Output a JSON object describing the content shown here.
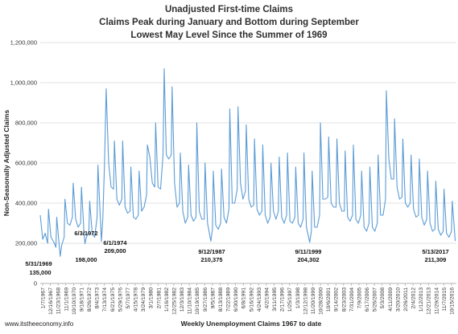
{
  "chart_data": {
    "type": "line",
    "title_lines": [
      "Unadjusted First-time Claims",
      "Claims Peak during January and Bottom during September",
      "Lowest May Level Since the Summer of 1969"
    ],
    "xlabel": "Weekly Unemployment Claims 1967 to date",
    "ylabel": "Non-Seasonally Adjusted Claims",
    "ylim": [
      0,
      1200000
    ],
    "yticks": [
      0,
      200000,
      400000,
      600000,
      800000,
      1000000,
      1200000
    ],
    "ytick_labels": [
      "0",
      "200,000",
      "400,000",
      "600,000",
      "800,000",
      "1,000,000",
      "1,200,000"
    ],
    "x_tick_labels": [
      "1/7/1967",
      "12/16/1967",
      "11/23/1968",
      "11/1/1969",
      "10/10/1970",
      "9/18/1971",
      "8/26/1972",
      "8/4/1973",
      "7/13/1974",
      "6/21/1975",
      "5/29/1976",
      "5/7/1977",
      "4/15/1978",
      "3/24/1979",
      "3/1/1980",
      "2/7/1981",
      "1/16/1982",
      "12/25/1982",
      "12/3/1983",
      "11/10/1984",
      "10/19/1985",
      "9/27/1986",
      "9/5/1987",
      "8/13/1988",
      "7/22/1989",
      "6/30/1990",
      "6/8/1991",
      "5/16/1992",
      "4/24/1993",
      "4/2/1994",
      "3/11/1995",
      "2/17/1996",
      "1/25/1997",
      "1/3/1998",
      "12/12/1998",
      "11/20/1999",
      "10/28/2000",
      "10/6/2001",
      "9/14/2002",
      "8/23/2003",
      "7/31/2004",
      "7/9/2005",
      "6/17/2006",
      "5/26/2007",
      "5/3/2008",
      "4/11/2009",
      "3/20/2010",
      "2/26/2011",
      "2/4/2012",
      "1/12/2013",
      "12/21/2013",
      "11/29/2014",
      "11/7/2015",
      "10/15/2016"
    ],
    "grid": true,
    "legend": "none",
    "line_color": "#5b9bd5",
    "series": [
      {
        "x": [
          1967.0,
          1967.3,
          1967.6,
          1967.9,
          1968.0,
          1968.3,
          1968.6,
          1968.9,
          1969.0,
          1969.3,
          1969.42,
          1969.6,
          1969.9,
          1970.0,
          1970.3,
          1970.6,
          1970.9,
          1971.0,
          1971.3,
          1971.6,
          1971.9,
          1972.0,
          1972.3,
          1972.42,
          1972.6,
          1972.9,
          1973.0,
          1973.3,
          1973.6,
          1973.9,
          1974.0,
          1974.3,
          1974.42,
          1974.6,
          1974.8,
          1975.0,
          1975.3,
          1975.6,
          1975.9,
          1976.0,
          1976.3,
          1976.6,
          1976.9,
          1977.0,
          1977.3,
          1977.6,
          1977.9,
          1978.0,
          1978.3,
          1978.6,
          1978.9,
          1979.0,
          1979.3,
          1979.6,
          1979.9,
          1980.0,
          1980.3,
          1980.6,
          1980.9,
          1981.0,
          1981.3,
          1981.6,
          1981.9,
          1982.04,
          1982.3,
          1982.6,
          1982.9,
          1983.0,
          1983.3,
          1983.6,
          1983.9,
          1984.0,
          1984.3,
          1984.6,
          1984.9,
          1985.0,
          1985.3,
          1985.6,
          1985.9,
          1986.0,
          1986.3,
          1986.6,
          1986.9,
          1987.0,
          1987.3,
          1987.7,
          1987.9,
          1988.0,
          1988.3,
          1988.6,
          1988.9,
          1989.0,
          1989.3,
          1989.6,
          1989.9,
          1990.0,
          1990.3,
          1990.6,
          1990.9,
          1991.0,
          1991.3,
          1991.6,
          1991.9,
          1992.0,
          1992.3,
          1992.6,
          1992.9,
          1993.0,
          1993.3,
          1993.6,
          1993.9,
          1994.0,
          1994.3,
          1994.6,
          1994.9,
          1995.0,
          1995.3,
          1995.6,
          1995.9,
          1996.0,
          1996.3,
          1996.6,
          1996.9,
          1997.0,
          1997.3,
          1997.6,
          1997.9,
          1998.0,
          1998.3,
          1998.6,
          1998.9,
          1999.0,
          1999.3,
          1999.7,
          1999.9,
          2000.0,
          2000.3,
          2000.6,
          2000.9,
          2001.0,
          2001.3,
          2001.6,
          2001.9,
          2002.0,
          2002.3,
          2002.6,
          2002.9,
          2003.0,
          2003.3,
          2003.6,
          2003.9,
          2004.0,
          2004.3,
          2004.6,
          2004.9,
          2005.0,
          2005.3,
          2005.6,
          2005.9,
          2006.0,
          2006.3,
          2006.6,
          2006.9,
          2007.0,
          2007.3,
          2007.6,
          2007.9,
          2008.0,
          2008.3,
          2008.6,
          2008.9,
          2009.0,
          2009.3,
          2009.6,
          2009.9,
          2010.0,
          2010.3,
          2010.6,
          2010.9,
          2011.0,
          2011.3,
          2011.6,
          2011.9,
          2012.0,
          2012.3,
          2012.6,
          2012.9,
          2013.0,
          2013.3,
          2013.6,
          2013.9,
          2014.0,
          2014.3,
          2014.6,
          2014.9,
          2015.0,
          2015.3,
          2015.6,
          2015.9,
          2016.0,
          2016.3,
          2016.6,
          2016.9,
          2017.0,
          2017.36
        ],
        "y": [
          340000,
          220000,
          250000,
          200000,
          370000,
          230000,
          210000,
          180000,
          330000,
          190000,
          135000,
          190000,
          230000,
          420000,
          300000,
          290000,
          330000,
          500000,
          320000,
          280000,
          300000,
          480000,
          260000,
          198000,
          230000,
          260000,
          410000,
          250000,
          230000,
          330000,
          590000,
          320000,
          209000,
          330000,
          600000,
          970000,
          600000,
          480000,
          470000,
          710000,
          420000,
          390000,
          420000,
          710000,
          380000,
          350000,
          360000,
          580000,
          330000,
          320000,
          340000,
          560000,
          360000,
          380000,
          440000,
          690000,
          630000,
          500000,
          480000,
          800000,
          480000,
          470000,
          640000,
          1070000,
          640000,
          620000,
          640000,
          980000,
          500000,
          380000,
          400000,
          650000,
          360000,
          300000,
          330000,
          590000,
          340000,
          310000,
          330000,
          800000,
          360000,
          320000,
          320000,
          600000,
          300000,
          210375,
          270000,
          560000,
          290000,
          270000,
          300000,
          570000,
          330000,
          300000,
          370000,
          870000,
          400000,
          400000,
          470000,
          880000,
          500000,
          420000,
          460000,
          790000,
          420000,
          380000,
          390000,
          720000,
          370000,
          340000,
          360000,
          690000,
          340000,
          300000,
          330000,
          600000,
          360000,
          320000,
          360000,
          630000,
          330000,
          300000,
          340000,
          650000,
          310000,
          300000,
          330000,
          580000,
          300000,
          280000,
          320000,
          650000,
          280000,
          204302,
          260000,
          560000,
          280000,
          280000,
          340000,
          800000,
          420000,
          420000,
          430000,
          730000,
          400000,
          380000,
          380000,
          720000,
          400000,
          360000,
          360000,
          660000,
          330000,
          310000,
          340000,
          690000,
          320000,
          300000,
          340000,
          560000,
          280000,
          260000,
          300000,
          580000,
          280000,
          260000,
          300000,
          640000,
          340000,
          340000,
          420000,
          960000,
          620000,
          520000,
          520000,
          820000,
          480000,
          420000,
          430000,
          720000,
          400000,
          380000,
          400000,
          640000,
          370000,
          330000,
          340000,
          620000,
          330000,
          290000,
          320000,
          560000,
          300000,
          260000,
          270000,
          510000,
          270000,
          240000,
          260000,
          470000,
          250000,
          230000,
          260000,
          410000,
          211309
        ]
      }
    ],
    "annotations": [
      {
        "date": "5/31/1969",
        "value": "135,000"
      },
      {
        "date": "6/3/1972",
        "value": "198,000"
      },
      {
        "date": "6/1/1974",
        "value": "209,000"
      },
      {
        "date": "9/12/1987",
        "value": "210,375"
      },
      {
        "date": "9/11/1999",
        "value": "204,302"
      },
      {
        "date": "5/13/2017",
        "value": "211,309"
      }
    ]
  },
  "footer": {
    "source": "www.itstheeconomy.info"
  }
}
